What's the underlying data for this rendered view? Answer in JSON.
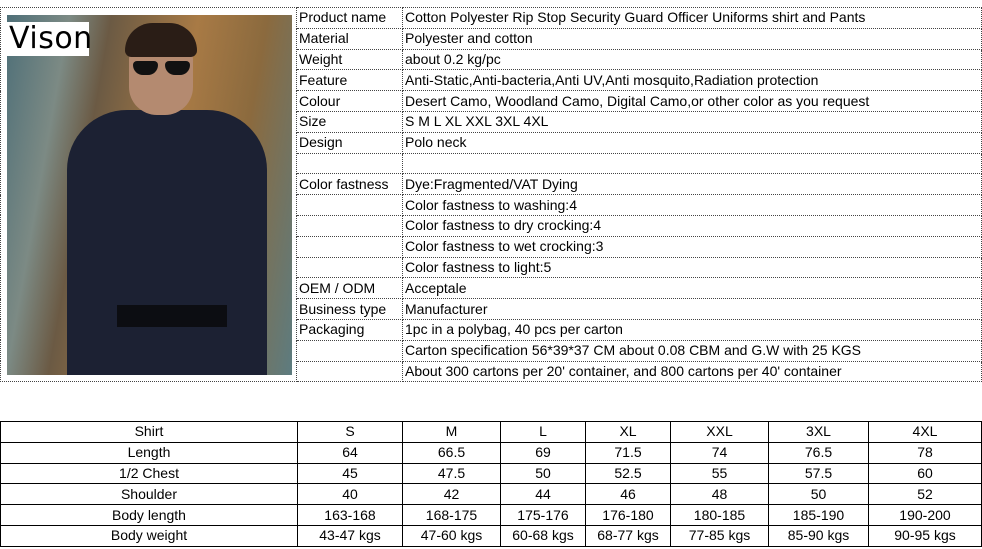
{
  "logo": {
    "text": "Vison"
  },
  "specs": [
    {
      "label": "Product name",
      "value": "Cotton Polyester Rip Stop Security Guard Officer Uniforms shirt and Pants"
    },
    {
      "label": "Material",
      "value": "Polyester  and  cotton"
    },
    {
      "label": "Weight",
      "value": "about 0.2 kg/pc"
    },
    {
      "label": "Feature",
      "value": "Anti-Static,Anti-bacteria,Anti UV,Anti mosquito,Radiation protection"
    },
    {
      "label": "Colour",
      "value": "Desert Camo, Woodland Camo, Digital Camo,or other color as you request"
    },
    {
      "label": "Size",
      "value": "S  M  L  XL  XXL 3XL 4XL"
    },
    {
      "label": "Design",
      "value": "Polo neck"
    },
    {
      "label": "",
      "value": ""
    },
    {
      "label": "Color fastness",
      "value": "Dye:Fragmented/VAT Dying"
    },
    {
      "label": "",
      "value": "Color fastness to washing:4"
    },
    {
      "label": "",
      "value": "Color fastness to dry crocking:4"
    },
    {
      "label": "",
      "value": "Color fastness to wet crocking:3"
    },
    {
      "label": "",
      "value": "Color fastness to light:5"
    },
    {
      "label": "OEM / ODM",
      "value": "Acceptale"
    },
    {
      "label": "Business type",
      "value": "Manufacturer"
    },
    {
      "label": "Packaging",
      "value": "1pc in a polybag, 40 pcs per carton"
    },
    {
      "label": "",
      "value": "Carton specification 56*39*37 CM about 0.08 CBM and G.W with 25 KGS"
    },
    {
      "label": "",
      "value": "About 300 cartons per 20' container, and 800 cartons per 40' container"
    }
  ],
  "size_chart": {
    "header": [
      "Shirt",
      "S",
      "M",
      "L",
      "XL",
      "XXL",
      "3XL",
      "4XL"
    ],
    "rows": [
      [
        "Length",
        "64",
        "66.5",
        "69",
        "71.5",
        "74",
        "76.5",
        "78"
      ],
      [
        "1/2 Chest",
        "45",
        "47.5",
        "50",
        "52.5",
        "55",
        "57.5",
        "60"
      ],
      [
        "Shoulder",
        "40",
        "42",
        "44",
        "46",
        "48",
        "50",
        "52"
      ],
      [
        "Body length",
        "163-168",
        "168-175",
        "175-176",
        "176-180",
        "180-185",
        "185-190",
        "190-200"
      ],
      [
        "Body weight",
        "43-47 kgs",
        "47-60 kgs",
        "60-68 kgs",
        "68-77 kgs",
        "77-85 kgs",
        "85-90 kgs",
        "90-95 kgs"
      ]
    ]
  }
}
